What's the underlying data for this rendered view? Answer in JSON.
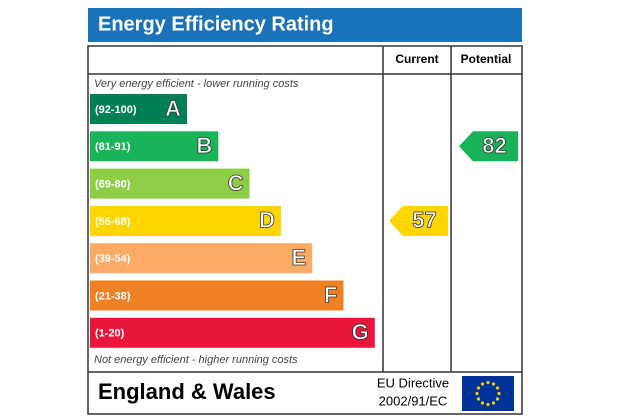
{
  "chart_data": {
    "type": "epc",
    "title": "Energy Efficiency Rating",
    "column_headers": [
      "Current",
      "Potential"
    ],
    "top_note": "Very energy efficient - lower running costs",
    "bottom_note": "Not energy efficient - higher running costs",
    "bands": [
      {
        "range": "(92-100)",
        "letter": "A",
        "color": "#008054"
      },
      {
        "range": "(81-91)",
        "letter": "B",
        "color": "#19b459"
      },
      {
        "range": "(69-80)",
        "letter": "C",
        "color": "#8dce46"
      },
      {
        "range": "(55-68)",
        "letter": "D",
        "color": "#ffd500"
      },
      {
        "range": "(39-54)",
        "letter": "E",
        "color": "#fcaa65"
      },
      {
        "range": "(21-38)",
        "letter": "F",
        "color": "#ef8023"
      },
      {
        "range": "(1-20)",
        "letter": "G",
        "color": "#e9153b"
      }
    ],
    "current": 57,
    "potential": 82,
    "footer": {
      "region": "England & Wales",
      "directive_line1": "EU Directive",
      "directive_line2": "2002/91/EC"
    }
  }
}
